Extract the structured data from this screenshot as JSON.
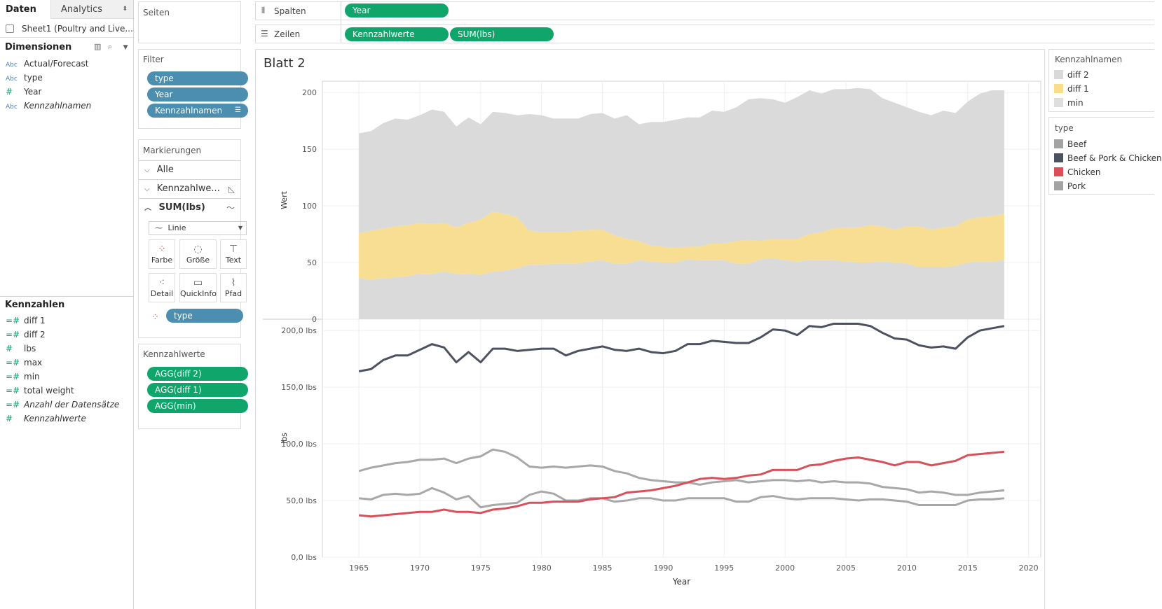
{
  "tabs": {
    "data": "Daten",
    "analytics": "Analytics"
  },
  "datasource": "Sheet1 (Poultry and Live...",
  "dimensions": {
    "title": "Dimensionen",
    "items": [
      {
        "icon": "Abc",
        "label": "Actual/Forecast"
      },
      {
        "icon": "Abc",
        "label": "type"
      },
      {
        "icon": "#",
        "label": "Year"
      },
      {
        "icon": "Abc",
        "label": "Kennzahlnamen"
      }
    ]
  },
  "measures": {
    "title": "Kennzahlen",
    "items": [
      {
        "icon": "=#",
        "label": "diff 1"
      },
      {
        "icon": "=#",
        "label": "diff 2"
      },
      {
        "icon": "#",
        "label": "lbs"
      },
      {
        "icon": "=#",
        "label": "max"
      },
      {
        "icon": "=#",
        "label": "min"
      },
      {
        "icon": "=#",
        "label": "total weight"
      },
      {
        "icon": "=#",
        "label": "Anzahl der Datensätze"
      },
      {
        "icon": "#",
        "label": "Kennzahlwerte"
      }
    ]
  },
  "pages_title": "Seiten",
  "filters": {
    "title": "Filter",
    "pills": [
      "type",
      "Year",
      "Kennzahlnamen"
    ]
  },
  "marks": {
    "title": "Markierungen",
    "all": "Alle",
    "kennzahl": "Kennzahlwe...",
    "sumlbs": "SUM(lbs)",
    "mark_type": "Linie",
    "cards": [
      "Farbe",
      "Größe",
      "Text",
      "Detail",
      "QuickInfo",
      "Pfad"
    ],
    "color_pill": "type"
  },
  "measure_values": {
    "title": "Kennzahlwerte",
    "pills": [
      "AGG(diff 2)",
      "AGG(diff 1)",
      "AGG(min)"
    ]
  },
  "shelves": {
    "columns_label": "Spalten",
    "columns_pill": "Year",
    "rows_label": "Zeilen",
    "rows_pills": [
      "Kennzahlwerte",
      "SUM(lbs)"
    ]
  },
  "sheet_title": "Blatt 2",
  "legend_names": {
    "title": "Kennzahlnamen",
    "items": [
      {
        "label": "diff 2",
        "color": "#d9d9d9"
      },
      {
        "label": "diff 1",
        "color": "#f7dd8c"
      },
      {
        "label": "min",
        "color": "#dedede"
      }
    ]
  },
  "legend_type": {
    "title": "type",
    "items": [
      {
        "label": "Beef",
        "color": "#a3a3a3"
      },
      {
        "label": "Beef & Pork & Chicken",
        "color": "#4d5260"
      },
      {
        "label": "Chicken",
        "color": "#d9505a"
      },
      {
        "label": "Pork",
        "color": "#a3a3a3"
      }
    ]
  },
  "chart_data": [
    {
      "type": "area",
      "ylabel": "Wert",
      "ylim": [
        0,
        210
      ],
      "yticks": [
        "0",
        "50",
        "100",
        "150",
        "200"
      ],
      "x": [
        1965,
        1966,
        1967,
        1968,
        1969,
        1970,
        1971,
        1972,
        1973,
        1974,
        1975,
        1976,
        1977,
        1978,
        1979,
        1980,
        1981,
        1982,
        1983,
        1984,
        1985,
        1986,
        1987,
        1988,
        1989,
        1990,
        1991,
        1992,
        1993,
        1994,
        1995,
        1996,
        1997,
        1998,
        1999,
        2000,
        2001,
        2002,
        2003,
        2004,
        2005,
        2006,
        2007,
        2008,
        2009,
        2010,
        2011,
        2012,
        2013,
        2014,
        2015,
        2016,
        2017,
        2018
      ],
      "series": [
        {
          "name": "min",
          "values": [
            36,
            35,
            36,
            37,
            38,
            40,
            40,
            42,
            40,
            40,
            39,
            42,
            43,
            45,
            48,
            48,
            49,
            49,
            49,
            51,
            52,
            49,
            49,
            52,
            51,
            50,
            50,
            53,
            52,
            52,
            52,
            49,
            49,
            53,
            54,
            52,
            51,
            52,
            52,
            52,
            51,
            50,
            50,
            51,
            50,
            49,
            46,
            46,
            46,
            47,
            50,
            51,
            51,
            52
          ]
        },
        {
          "name": "diff 1",
          "values": [
            40,
            43,
            44,
            45,
            45,
            45,
            44,
            43,
            41,
            45,
            49,
            53,
            50,
            45,
            30,
            29,
            28,
            28,
            29,
            28,
            27,
            25,
            22,
            17,
            14,
            14,
            13,
            11,
            12,
            15,
            15,
            20,
            21,
            16,
            17,
            19,
            20,
            23,
            25,
            28,
            30,
            31,
            33,
            31,
            29,
            33,
            36,
            33,
            35,
            35,
            38,
            39,
            40,
            41
          ]
        },
        {
          "name": "diff 2",
          "values": [
            88,
            88,
            93,
            95,
            93,
            95,
            101,
            98,
            89,
            93,
            84,
            88,
            89,
            90,
            103,
            103,
            100,
            100,
            99,
            102,
            103,
            103,
            109,
            103,
            109,
            110,
            113,
            114,
            114,
            117,
            116,
            118,
            124,
            126,
            123,
            120,
            125,
            127,
            122,
            123,
            122,
            123,
            120,
            113,
            112,
            105,
            101,
            101,
            103,
            100,
            104,
            109,
            111,
            109
          ]
        }
      ]
    },
    {
      "type": "line",
      "xlabel": "Year",
      "ylabel": "lbs",
      "ylim": [
        0,
        210
      ],
      "yticks": [
        "0,0 lbs",
        "50,0 lbs",
        "100,0 lbs",
        "150,0 lbs",
        "200,0 lbs"
      ],
      "xticks": [
        "1965",
        "1970",
        "1975",
        "1980",
        "1985",
        "1990",
        "1995",
        "2000",
        "2005",
        "2010",
        "2015",
        "2020"
      ],
      "x": [
        1965,
        1966,
        1967,
        1968,
        1969,
        1970,
        1971,
        1972,
        1973,
        1974,
        1975,
        1976,
        1977,
        1978,
        1979,
        1980,
        1981,
        1982,
        1983,
        1984,
        1985,
        1986,
        1987,
        1988,
        1989,
        1990,
        1991,
        1992,
        1993,
        1994,
        1995,
        1996,
        1997,
        1998,
        1999,
        2000,
        2001,
        2002,
        2003,
        2004,
        2005,
        2006,
        2007,
        2008,
        2009,
        2010,
        2011,
        2012,
        2013,
        2014,
        2015,
        2016,
        2017,
        2018
      ],
      "series": [
        {
          "name": "Beef & Pork & Chicken",
          "color": "#4d5260",
          "values": [
            164,
            166,
            174,
            178,
            178,
            183,
            188,
            185,
            172,
            181,
            172,
            184,
            184,
            182,
            183,
            184,
            184,
            178,
            182,
            184,
            186,
            183,
            182,
            184,
            181,
            180,
            182,
            188,
            188,
            191,
            190,
            189,
            189,
            194,
            201,
            200,
            196,
            204,
            203,
            206,
            206,
            206,
            204,
            198,
            193,
            192,
            187,
            185,
            186,
            184,
            194,
            200,
            202,
            204
          ]
        },
        {
          "name": "Beef",
          "color": "#a8a8a8",
          "values": [
            76,
            79,
            81,
            83,
            84,
            86,
            86,
            87,
            83,
            87,
            89,
            95,
            93,
            88,
            80,
            79,
            80,
            79,
            80,
            81,
            80,
            76,
            74,
            70,
            68,
            67,
            66,
            66,
            64,
            66,
            67,
            68,
            66,
            67,
            68,
            68,
            67,
            68,
            66,
            67,
            66,
            66,
            65,
            62,
            61,
            60,
            57,
            58,
            57,
            55,
            55,
            57,
            58,
            59
          ]
        },
        {
          "name": "Pork",
          "color": "#a8a8a8",
          "values": [
            52,
            51,
            55,
            56,
            55,
            56,
            61,
            57,
            51,
            54,
            44,
            46,
            47,
            48,
            55,
            58,
            56,
            50,
            50,
            52,
            52,
            49,
            50,
            52,
            52,
            50,
            50,
            52,
            52,
            52,
            52,
            49,
            49,
            53,
            54,
            52,
            51,
            52,
            52,
            52,
            51,
            50,
            51,
            51,
            50,
            49,
            46,
            46,
            46,
            46,
            50,
            51,
            51,
            52
          ]
        },
        {
          "name": "Chicken",
          "color": "#d9505a",
          "values": [
            37,
            36,
            37,
            38,
            39,
            40,
            40,
            42,
            40,
            40,
            39,
            42,
            43,
            45,
            48,
            48,
            49,
            49,
            49,
            51,
            52,
            53,
            57,
            58,
            59,
            61,
            63,
            66,
            69,
            70,
            69,
            70,
            72,
            73,
            77,
            77,
            77,
            81,
            82,
            85,
            87,
            88,
            86,
            84,
            81,
            84,
            84,
            81,
            83,
            85,
            90,
            91,
            92,
            93
          ]
        }
      ]
    }
  ]
}
